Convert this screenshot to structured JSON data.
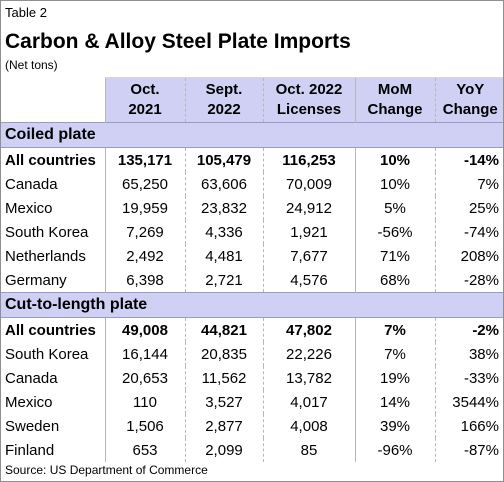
{
  "table_label": "Table 2",
  "title": "Carbon & Alloy Steel Plate Imports",
  "unit": "(Net tons)",
  "columns": [
    {
      "line1": "",
      "line2": ""
    },
    {
      "line1": "Oct.",
      "line2": "2021"
    },
    {
      "line1": "Sept.",
      "line2": "2022"
    },
    {
      "line1": "Oct. 2022",
      "line2": "Licenses"
    },
    {
      "line1": "MoM",
      "line2": "Change"
    },
    {
      "line1": "YoY",
      "line2": "Change"
    }
  ],
  "sections": [
    {
      "title": "Coiled plate",
      "rows": [
        {
          "country": "All countries",
          "oct2021": "135,171",
          "sept2022": "105,479",
          "oct2022_licenses": "116,253",
          "mom": "10%",
          "yoy": "-14%"
        },
        {
          "country": "Canada",
          "oct2021": "65,250",
          "sept2022": "63,606",
          "oct2022_licenses": "70,009",
          "mom": "10%",
          "yoy": "7%"
        },
        {
          "country": "Mexico",
          "oct2021": "19,959",
          "sept2022": "23,832",
          "oct2022_licenses": "24,912",
          "mom": "5%",
          "yoy": "25%"
        },
        {
          "country": "South Korea",
          "oct2021": "7,269",
          "sept2022": "4,336",
          "oct2022_licenses": "1,921",
          "mom": "-56%",
          "yoy": "-74%"
        },
        {
          "country": "Netherlands",
          "oct2021": "2,492",
          "sept2022": "4,481",
          "oct2022_licenses": "7,677",
          "mom": "71%",
          "yoy": "208%"
        },
        {
          "country": "Germany",
          "oct2021": "6,398",
          "sept2022": "2,721",
          "oct2022_licenses": "4,576",
          "mom": "68%",
          "yoy": "-28%"
        }
      ]
    },
    {
      "title": "Cut-to-length plate",
      "rows": [
        {
          "country": "All countries",
          "oct2021": "49,008",
          "sept2022": "44,821",
          "oct2022_licenses": "47,802",
          "mom": "7%",
          "yoy": "-2%"
        },
        {
          "country": "South Korea",
          "oct2021": "16,144",
          "sept2022": "20,835",
          "oct2022_licenses": "22,226",
          "mom": "7%",
          "yoy": "38%"
        },
        {
          "country": "Canada",
          "oct2021": "20,653",
          "sept2022": "11,562",
          "oct2022_licenses": "13,782",
          "mom": "19%",
          "yoy": "-33%"
        },
        {
          "country": "Mexico",
          "oct2021": "110",
          "sept2022": "3,527",
          "oct2022_licenses": "4,017",
          "mom": "14%",
          "yoy": "3544%"
        },
        {
          "country": "Sweden",
          "oct2021": "1,506",
          "sept2022": "2,877",
          "oct2022_licenses": "4,008",
          "mom": "39%",
          "yoy": "166%"
        },
        {
          "country": "Finland",
          "oct2021": "653",
          "sept2022": "2,099",
          "oct2022_licenses": "85",
          "mom": "-96%",
          "yoy": "-87%"
        }
      ]
    }
  ],
  "source": "Source: US Department of Commerce",
  "colors": {
    "header_fill": "#cfd0f3",
    "border": "#b7b7b7"
  }
}
